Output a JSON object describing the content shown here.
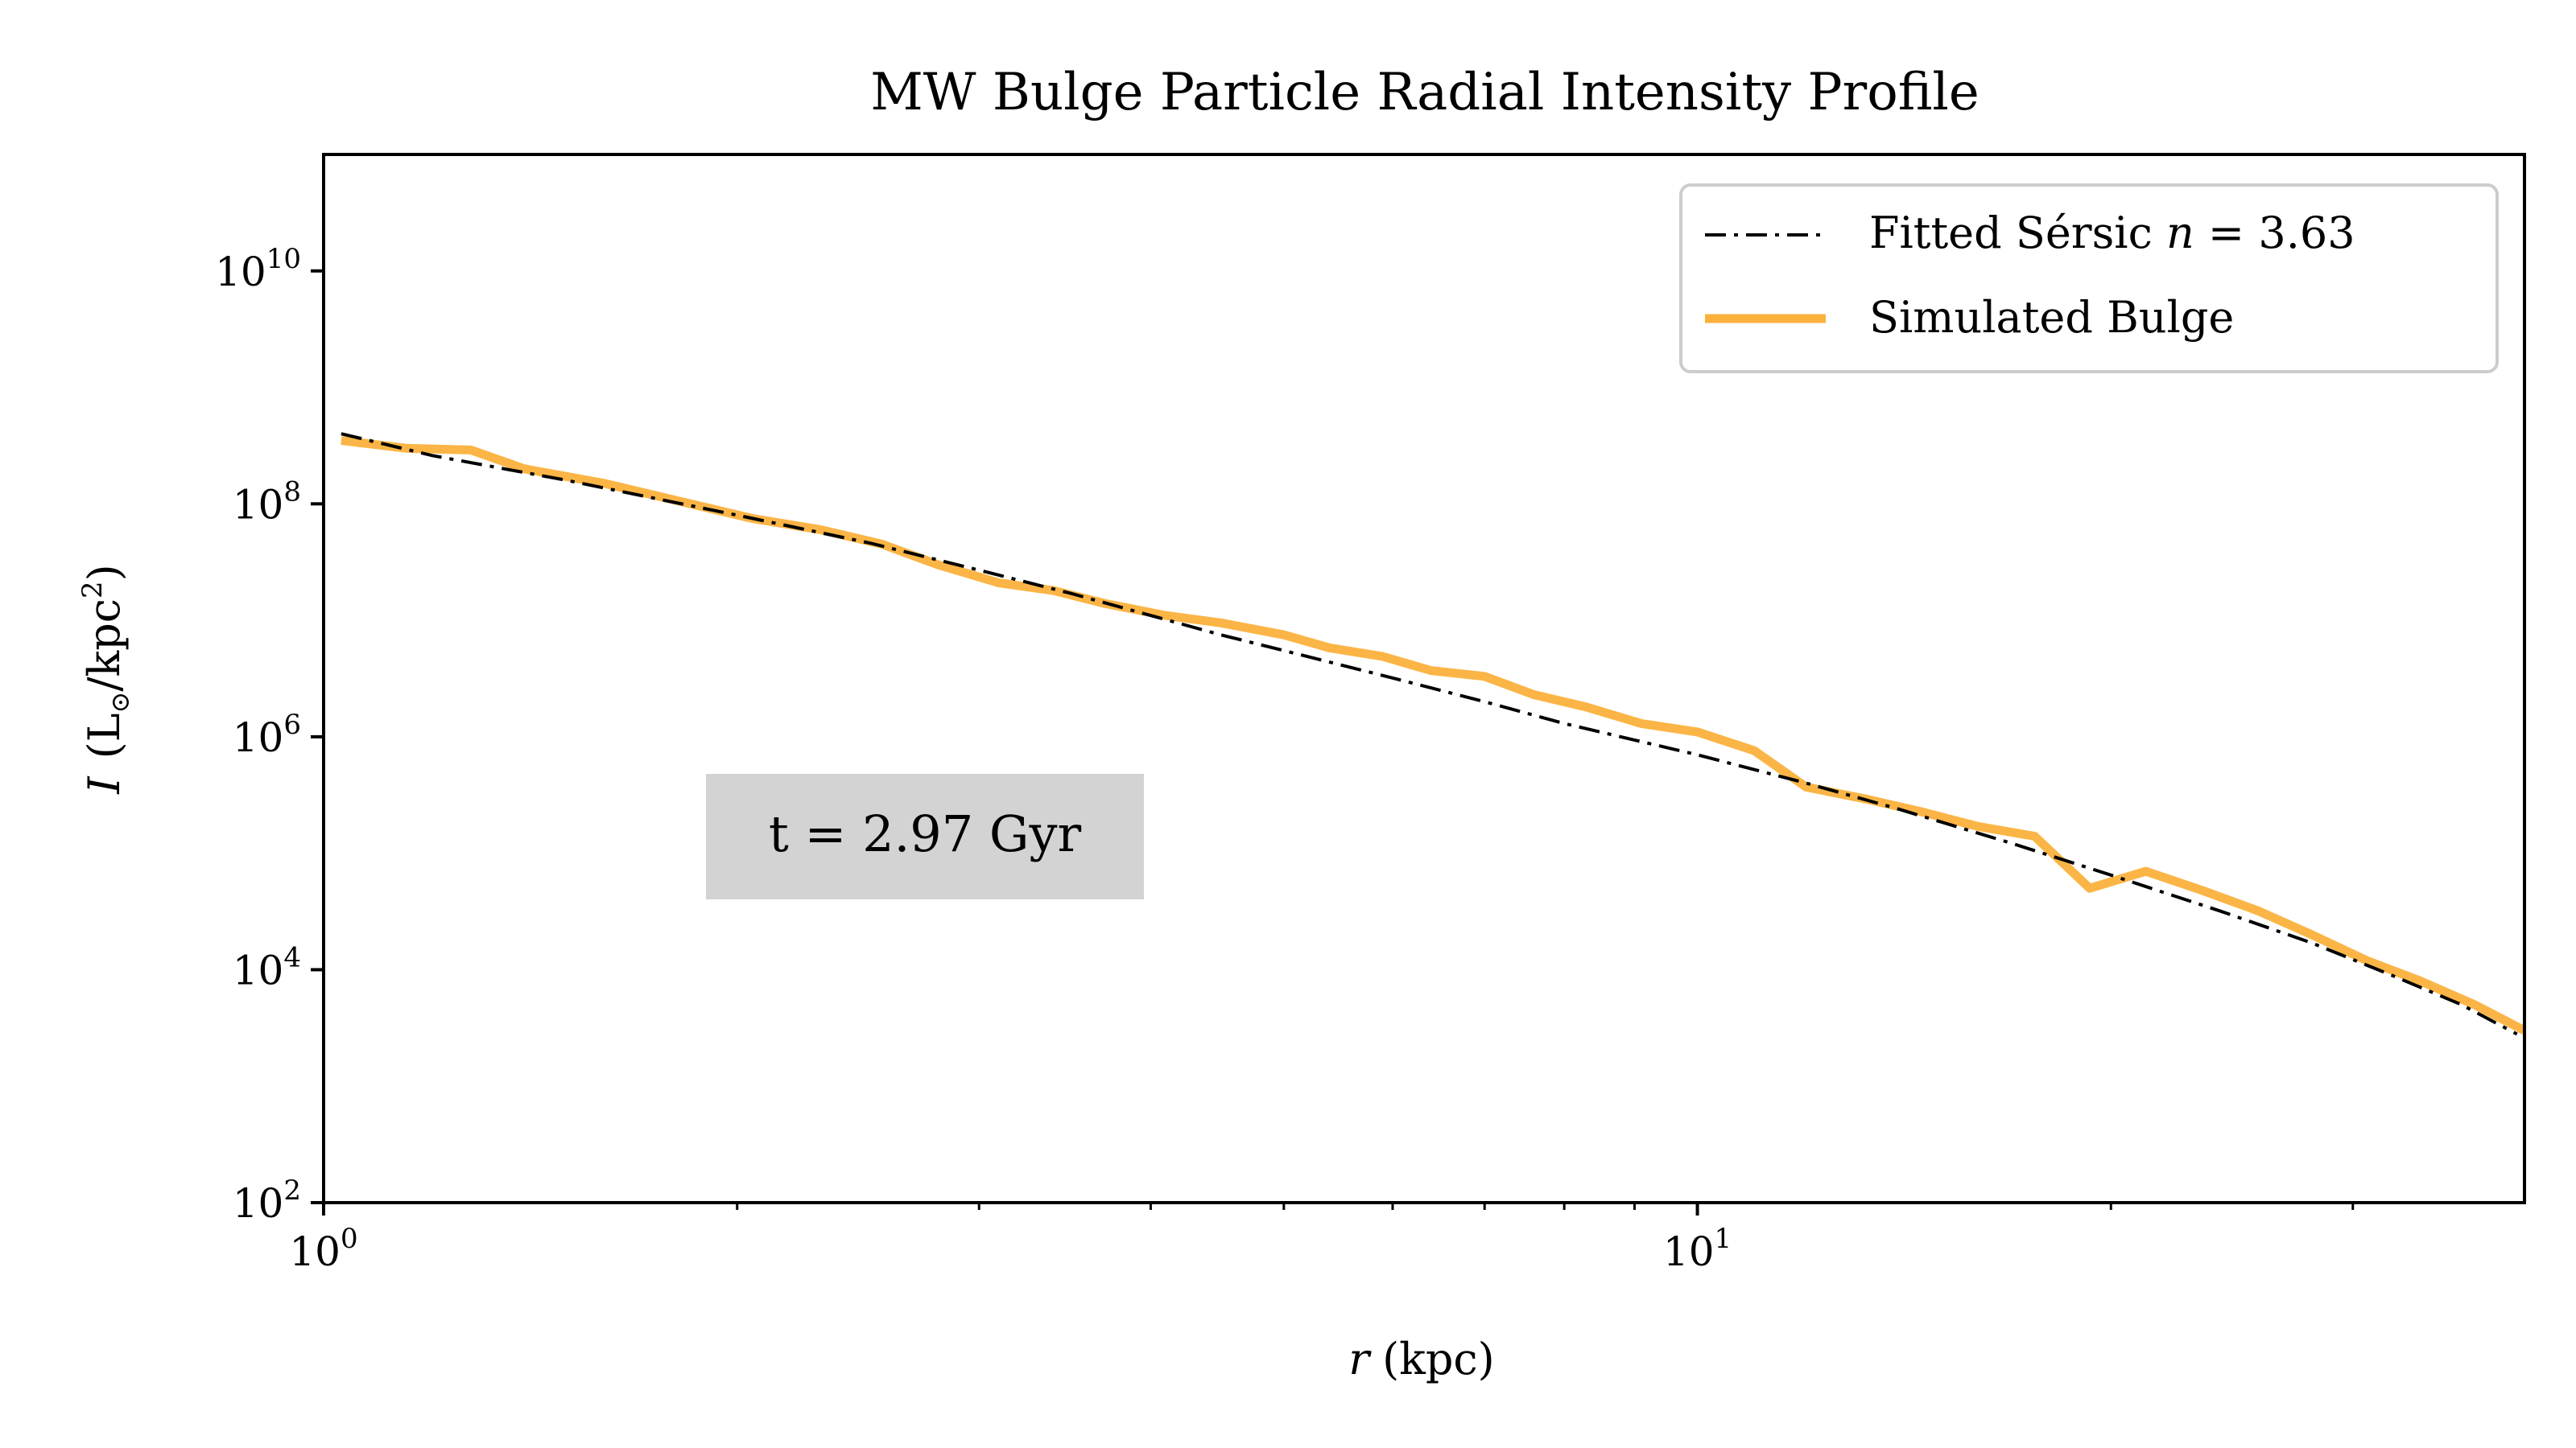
{
  "chart_data": {
    "type": "line",
    "title": "MW Bulge Particle Radial Intensity Profile",
    "xlabel_var": "r",
    "xlabel_unit": "(kpc)",
    "ylabel_var": "I",
    "ylabel_unit_pre": "(L",
    "ylabel_sub": "⊙",
    "ylabel_unit_mid": "/kpc",
    "ylabel_sup": "2",
    "ylabel_unit_post": ")",
    "x_scale": "log",
    "y_scale": "log",
    "xlim": [
      1.0,
      40.0
    ],
    "ylim": [
      100,
      100000000000
    ],
    "x_ticks": [
      {
        "base": "10",
        "exp": "0",
        "value": 1
      },
      {
        "base": "10",
        "exp": "1",
        "value": 10
      }
    ],
    "y_ticks": [
      {
        "base": "10",
        "exp": "2",
        "value": 100
      },
      {
        "base": "10",
        "exp": "4",
        "value": 10000
      },
      {
        "base": "10",
        "exp": "6",
        "value": 1000000
      },
      {
        "base": "10",
        "exp": "8",
        "value": 100000000
      },
      {
        "base": "10",
        "exp": "10",
        "value": 10000000000
      }
    ],
    "grid": false,
    "legend_placement": "top-right",
    "annotation": "t = 2.97 Gyr",
    "series": [
      {
        "name": "Fitted Sérsic n = 3.63",
        "legend_prefix": "Fitted Sérsic ",
        "legend_var": "n",
        "legend_suffix": " = 3.63",
        "color": "#000000",
        "style": "dashdot",
        "x": [
          1.03,
          1.2,
          1.5,
          2.0,
          2.5,
          3.0,
          3.5,
          4.0,
          4.5,
          5.0,
          6.0,
          7.0,
          8.0,
          10.0,
          12.0,
          14.0,
          17.0,
          20.0,
          24.0,
          28.0,
          32.0,
          36.0,
          39.5
        ],
        "y": [
          400000000,
          260000000,
          160000000,
          80000000,
          46000000,
          27000000,
          17000000,
          11000000,
          7500000,
          5500000,
          3200000,
          2000000,
          1300000,
          700000,
          400000,
          240000,
          120000,
          65000,
          32000,
          17000,
          9000,
          5000,
          2800
        ]
      },
      {
        "name": "Simulated Bulge",
        "color": "#fbb13c",
        "style": "solid",
        "x": [
          1.03,
          1.15,
          1.28,
          1.4,
          1.6,
          1.85,
          2.05,
          2.3,
          2.55,
          2.8,
          3.1,
          3.4,
          3.7,
          4.1,
          4.5,
          5.0,
          5.4,
          5.9,
          6.4,
          7.0,
          7.6,
          8.3,
          9.1,
          10.0,
          11.0,
          12.0,
          13.3,
          14.5,
          16.0,
          17.6,
          19.3,
          21.2,
          23.3,
          25.6,
          28.0,
          30.7,
          33.6,
          36.8,
          40.0
        ],
        "y": [
          350000000,
          300000000,
          290000000,
          200000000,
          150000000,
          100000000,
          75000000,
          60000000,
          45000000,
          30000000,
          21000000,
          18000000,
          14000000,
          11000000,
          9500000,
          7500000,
          5800000,
          4900000,
          3700000,
          3300000,
          2300000,
          1800000,
          1300000,
          1100000,
          760000,
          370000,
          290000,
          230000,
          170000,
          140000,
          50000,
          70000,
          48000,
          32000,
          20000,
          12000,
          8000,
          5000,
          3000
        ]
      }
    ]
  }
}
